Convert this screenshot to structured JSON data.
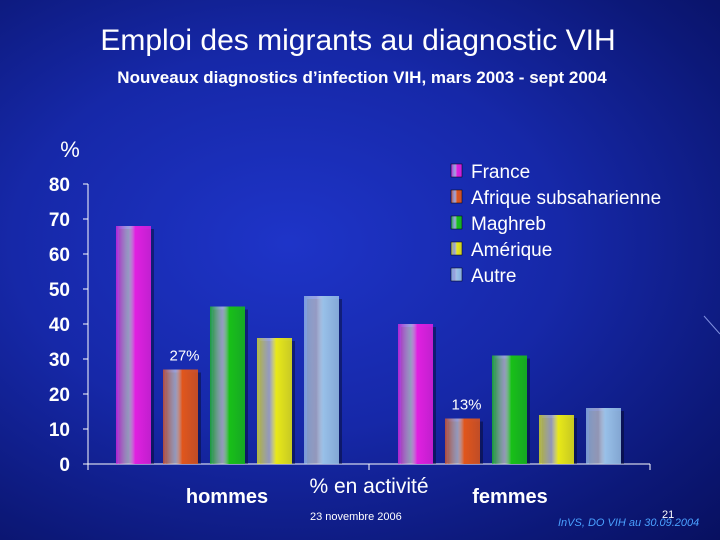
{
  "slide": {
    "title": "Emploi des migrants au diagnostic VIH",
    "subtitle": "Nouveaux diagnostics d’infection VIH, mars 2003 - sept 2004",
    "footer_date": "23 novembre 2006",
    "footer_page": "21",
    "footer_source": "InVS, DO VIH au 30.09.2004"
  },
  "chart_data": {
    "type": "bar",
    "title": "",
    "ylabel": "%",
    "xlabel": "% en activité",
    "ylim": [
      0,
      80
    ],
    "yticks": [
      0,
      10,
      20,
      30,
      40,
      50,
      60,
      70,
      80
    ],
    "categories": [
      "hommes",
      "femmes"
    ],
    "series": [
      {
        "name": "France",
        "color": "#e020e0",
        "values": [
          68,
          40
        ]
      },
      {
        "name": "Afrique subsaharienne",
        "color": "#e0561c",
        "values": [
          27,
          13
        ]
      },
      {
        "name": "Maghreb",
        "color": "#18c018",
        "values": [
          45,
          31
        ]
      },
      {
        "name": "Amérique",
        "color": "#e8e818",
        "values": [
          36,
          14
        ]
      },
      {
        "name": "Autre",
        "color": "#98c0e8",
        "values": [
          48,
          16
        ]
      }
    ],
    "annotations": [
      {
        "text": "27%",
        "category": "hommes",
        "series": "Afrique subsaharienne"
      },
      {
        "text": "13%",
        "category": "femmes",
        "series": "Afrique subsaharienne"
      }
    ],
    "legend": "top-right",
    "grid": false
  }
}
